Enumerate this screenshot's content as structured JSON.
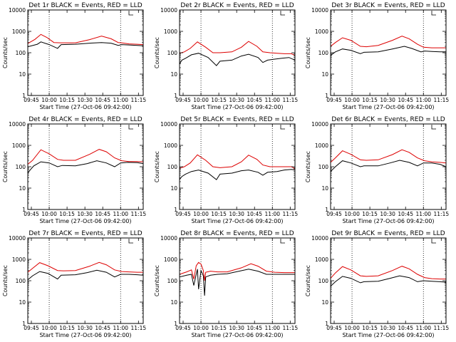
{
  "chart_data": [
    {
      "type": "line",
      "title": "Det 1r BLACK = Events, RED = LLD",
      "xlabel": "Start Time (27-Oct-06 09:42:00)",
      "ylabel": "Counts/sec",
      "xticks": [
        "09:45",
        "10:00",
        "10:15",
        "10:30",
        "10:45",
        "11:00",
        "11:15"
      ],
      "yticks": [
        "1",
        "10",
        "100",
        "1000",
        "10000"
      ],
      "xlim_minutes_after_0942": [
        0,
        97
      ],
      "ylim": [
        1,
        10000
      ],
      "yscale": "log",
      "vlines": [
        "10:00",
        "11:00"
      ],
      "series": [
        {
          "color": "#000000",
          "x": [
            0,
            8,
            11,
            18,
            25,
            28,
            40,
            52,
            62,
            70,
            76,
            79,
            85,
            92,
            97
          ],
          "y": [
            190,
            250,
            320,
            240,
            160,
            240,
            250,
            280,
            300,
            280,
            220,
            240,
            230,
            220,
            210
          ]
        },
        {
          "color": "#dd0000",
          "x": [
            0,
            6,
            11,
            16,
            22,
            28,
            40,
            52,
            62,
            70,
            76,
            79,
            85,
            92,
            97
          ],
          "y": [
            270,
            420,
            720,
            520,
            300,
            290,
            290,
            410,
            600,
            450,
            300,
            290,
            260,
            250,
            240
          ]
        }
      ]
    },
    {
      "type": "line",
      "title": "Det 2r BLACK = Events, RED = LLD",
      "xlabel": "Start Time (27-Oct-06 09:42:00)",
      "ylabel": "Counts/sec",
      "xticks": [
        "09:45",
        "10:00",
        "10:15",
        "10:30",
        "10:45",
        "11:00",
        "11:15"
      ],
      "yticks": [
        "1",
        "10",
        "100",
        "1000",
        "10000"
      ],
      "xlim_minutes_after_0942": [
        0,
        97
      ],
      "ylim": [
        1,
        10000
      ],
      "yscale": "log",
      "vlines": [
        "10:00",
        "11:00"
      ],
      "series": [
        {
          "color": "#000000",
          "x": [
            0,
            2,
            5,
            10,
            16,
            24,
            31,
            34,
            44,
            52,
            58,
            66,
            70,
            74,
            80,
            86,
            92,
            97
          ],
          "y": [
            30,
            45,
            55,
            80,
            95,
            60,
            25,
            40,
            45,
            70,
            85,
            60,
            35,
            45,
            50,
            55,
            60,
            45
          ]
        },
        {
          "color": "#dd0000",
          "x": [
            0,
            4,
            9,
            15,
            22,
            28,
            34,
            44,
            52,
            58,
            65,
            70,
            76,
            82,
            88,
            94,
            97
          ],
          "y": [
            95,
            110,
            160,
            320,
            180,
            100,
            100,
            110,
            180,
            340,
            200,
            110,
            100,
            95,
            90,
            90,
            75
          ]
        }
      ]
    },
    {
      "type": "line",
      "title": "Det 3r BLACK = Events, RED = LLD",
      "xlabel": "Start Time (27-Oct-06 09:42:00)",
      "ylabel": "Counts/sec",
      "xticks": [
        "09:45",
        "10:00",
        "10:15",
        "10:30",
        "10:45",
        "11:00",
        "11:15"
      ],
      "yticks": [
        "1",
        "10",
        "100",
        "1000",
        "10000"
      ],
      "xlim_minutes_after_0942": [
        0,
        97
      ],
      "ylim": [
        1,
        10000
      ],
      "yscale": "log",
      "vlines": [
        "10:00",
        "11:00"
      ],
      "series": [
        {
          "color": "#000000",
          "x": [
            0,
            4,
            10,
            17,
            25,
            28,
            40,
            52,
            62,
            68,
            76,
            79,
            85,
            92,
            97
          ],
          "y": [
            75,
            110,
            150,
            130,
            90,
            105,
            110,
            150,
            200,
            160,
            110,
            120,
            115,
            110,
            110
          ]
        },
        {
          "color": "#dd0000",
          "x": [
            0,
            4,
            10,
            17,
            25,
            30,
            40,
            52,
            60,
            66,
            73,
            78,
            85,
            92,
            97
          ],
          "y": [
            200,
            300,
            500,
            380,
            200,
            190,
            220,
            380,
            600,
            450,
            250,
            180,
            170,
            170,
            170
          ]
        }
      ]
    },
    {
      "type": "line",
      "title": "Det 4r BLACK = Events, RED = LLD",
      "xlabel": "Start Time (27-Oct-06 09:42:00)",
      "ylabel": "Counts/sec",
      "xticks": [
        "09:45",
        "10:00",
        "10:15",
        "10:30",
        "10:45",
        "11:00",
        "11:15"
      ],
      "yticks": [
        "1",
        "10",
        "100",
        "1000",
        "10000"
      ],
      "xlim_minutes_after_0942": [
        0,
        97
      ],
      "ylim": [
        1,
        10000
      ],
      "yscale": "log",
      "vlines": [
        "10:00",
        "11:00"
      ],
      "series": [
        {
          "color": "#000000",
          "x": [
            0,
            2,
            5,
            11,
            18,
            25,
            29,
            40,
            50,
            58,
            66,
            73,
            78,
            84,
            92,
            97
          ],
          "y": [
            50,
            70,
            110,
            170,
            150,
            100,
            115,
            110,
            140,
            190,
            150,
            100,
            150,
            160,
            155,
            140
          ]
        },
        {
          "color": "#dd0000",
          "x": [
            0,
            4,
            11,
            18,
            25,
            30,
            40,
            52,
            60,
            66,
            73,
            79,
            85,
            92,
            97
          ],
          "y": [
            130,
            200,
            620,
            400,
            220,
            200,
            200,
            380,
            650,
            500,
            260,
            190,
            175,
            175,
            170
          ]
        }
      ]
    },
    {
      "type": "line",
      "title": "Det 5r BLACK = Events, RED = LLD",
      "xlabel": "Start Time (27-Oct-06 09:42:00)",
      "ylabel": "Counts/sec",
      "xticks": [
        "09:45",
        "10:00",
        "10:15",
        "10:30",
        "10:45",
        "11:00",
        "11:15"
      ],
      "yticks": [
        "1",
        "10",
        "100",
        "1000",
        "10000"
      ],
      "xlim_minutes_after_0942": [
        0,
        97
      ],
      "ylim": [
        1,
        10000
      ],
      "yscale": "log",
      "vlines": [
        "10:00",
        "11:00"
      ],
      "series": [
        {
          "color": "#000000",
          "x": [
            0,
            2,
            5,
            10,
            16,
            24,
            31,
            34,
            44,
            52,
            58,
            66,
            70,
            74,
            82,
            88,
            94,
            97
          ],
          "y": [
            25,
            35,
            45,
            60,
            70,
            50,
            25,
            45,
            50,
            65,
            70,
            55,
            40,
            55,
            60,
            70,
            75,
            70
          ]
        },
        {
          "color": "#dd0000",
          "x": [
            0,
            4,
            9,
            15,
            22,
            28,
            34,
            44,
            52,
            58,
            65,
            70,
            76,
            82,
            88,
            94,
            97
          ],
          "y": [
            85,
            100,
            150,
            360,
            200,
            100,
            90,
            100,
            170,
            350,
            220,
            120,
            100,
            100,
            100,
            100,
            80
          ]
        }
      ]
    },
    {
      "type": "line",
      "title": "Det 6r BLACK = Events, RED = LLD",
      "xlabel": "Start Time (27-Oct-06 09:42:00)",
      "ylabel": "Counts/sec",
      "xticks": [
        "09:45",
        "10:00",
        "10:15",
        "10:30",
        "10:45",
        "11:00",
        "11:15"
      ],
      "yticks": [
        "1",
        "10",
        "100",
        "1000",
        "10000"
      ],
      "xlim_minutes_after_0942": [
        0,
        97
      ],
      "ylim": [
        1,
        10000
      ],
      "yscale": "log",
      "vlines": [
        "10:00",
        "11:00"
      ],
      "series": [
        {
          "color": "#000000",
          "x": [
            0,
            4,
            10,
            17,
            25,
            28,
            40,
            50,
            58,
            66,
            73,
            78,
            85,
            92,
            97
          ],
          "y": [
            60,
            100,
            190,
            150,
            100,
            110,
            110,
            150,
            200,
            160,
            110,
            150,
            150,
            130,
            100
          ]
        },
        {
          "color": "#dd0000",
          "x": [
            0,
            4,
            10,
            17,
            25,
            30,
            40,
            52,
            60,
            66,
            73,
            79,
            85,
            92,
            97
          ],
          "y": [
            160,
            260,
            560,
            380,
            210,
            200,
            210,
            370,
            620,
            470,
            260,
            190,
            170,
            160,
            150
          ]
        }
      ]
    },
    {
      "type": "line",
      "title": "Det 7r BLACK = Events, RED = LLD",
      "xlabel": "Start Time (27-Oct-06 09:42:00)",
      "ylabel": "Counts/sec",
      "xticks": [
        "09:45",
        "10:00",
        "10:15",
        "10:30",
        "10:45",
        "11:00",
        "11:15"
      ],
      "yticks": [
        "1",
        "10",
        "100",
        "1000",
        "10000"
      ],
      "xlim_minutes_after_0942": [
        0,
        97
      ],
      "ylim": [
        1,
        10000
      ],
      "yscale": "log",
      "vlines": [
        "10:00",
        "11:00"
      ],
      "series": [
        {
          "color": "#000000",
          "x": [
            0,
            4,
            10,
            17,
            25,
            28,
            40,
            50,
            58,
            66,
            73,
            78,
            85,
            92,
            97
          ],
          "y": [
            110,
            170,
            270,
            220,
            120,
            180,
            190,
            240,
            310,
            250,
            150,
            200,
            200,
            190,
            180
          ]
        },
        {
          "color": "#dd0000",
          "x": [
            0,
            4,
            10,
            17,
            25,
            30,
            40,
            52,
            60,
            66,
            73,
            79,
            85,
            92,
            97
          ],
          "y": [
            250,
            380,
            700,
            500,
            300,
            290,
            300,
            480,
            720,
            560,
            320,
            270,
            260,
            250,
            250
          ]
        }
      ]
    },
    {
      "type": "line",
      "title": "Det 8r BLACK = Events, RED = LLD",
      "xlabel": "Start Time (27-Oct-06 09:42:00)",
      "ylabel": "Counts/sec",
      "xticks": [
        "09:45",
        "10:00",
        "10:15",
        "10:30",
        "10:45",
        "11:00",
        "11:15"
      ],
      "yticks": [
        "1",
        "10",
        "100",
        "1000",
        "10000"
      ],
      "xlim_minutes_after_0942": [
        0,
        97
      ],
      "ylim": [
        1,
        10000
      ],
      "yscale": "log",
      "vlines": [
        "10:00",
        "11:00"
      ],
      "series": [
        {
          "color": "#000000",
          "x": [
            0,
            6,
            10,
            12,
            14,
            15,
            16,
            18,
            20,
            21,
            22,
            26,
            32,
            40,
            50,
            58,
            66,
            73,
            80,
            88,
            97
          ],
          "y": [
            150,
            180,
            200,
            60,
            200,
            350,
            40,
            300,
            170,
            20,
            150,
            180,
            200,
            210,
            280,
            350,
            280,
            200,
            200,
            200,
            200
          ]
        },
        {
          "color": "#dd0000",
          "x": [
            0,
            6,
            10,
            12,
            14,
            16,
            18,
            20,
            21,
            22,
            26,
            32,
            40,
            52,
            60,
            66,
            73,
            80,
            88,
            97
          ],
          "y": [
            200,
            260,
            320,
            120,
            500,
            720,
            600,
            300,
            100,
            250,
            280,
            260,
            260,
            400,
            620,
            480,
            280,
            250,
            240,
            240
          ]
        }
      ]
    },
    {
      "type": "line",
      "title": "Det 9r BLACK = Events, RED = LLD",
      "xlabel": "Start Time (27-Oct-06 09:42:00)",
      "ylabel": "Counts/sec",
      "xticks": [
        "09:45",
        "10:00",
        "10:15",
        "10:30",
        "10:45",
        "11:00",
        "11:15"
      ],
      "yticks": [
        "1",
        "10",
        "100",
        "1000",
        "10000"
      ],
      "xlim_minutes_after_0942": [
        0,
        97
      ],
      "ylim": [
        1,
        10000
      ],
      "yscale": "log",
      "vlines": [
        "10:00",
        "11:00"
      ],
      "series": [
        {
          "color": "#000000",
          "x": [
            0,
            4,
            10,
            17,
            25,
            28,
            40,
            50,
            58,
            66,
            73,
            78,
            85,
            92,
            97
          ],
          "y": [
            55,
            90,
            160,
            130,
            80,
            90,
            95,
            130,
            170,
            140,
            90,
            100,
            95,
            90,
            85
          ]
        },
        {
          "color": "#dd0000",
          "x": [
            0,
            4,
            10,
            17,
            25,
            30,
            40,
            52,
            60,
            66,
            73,
            79,
            85,
            92,
            97
          ],
          "y": [
            130,
            230,
            460,
            320,
            170,
            160,
            170,
            300,
            480,
            360,
            200,
            140,
            125,
            120,
            120
          ]
        }
      ]
    }
  ]
}
